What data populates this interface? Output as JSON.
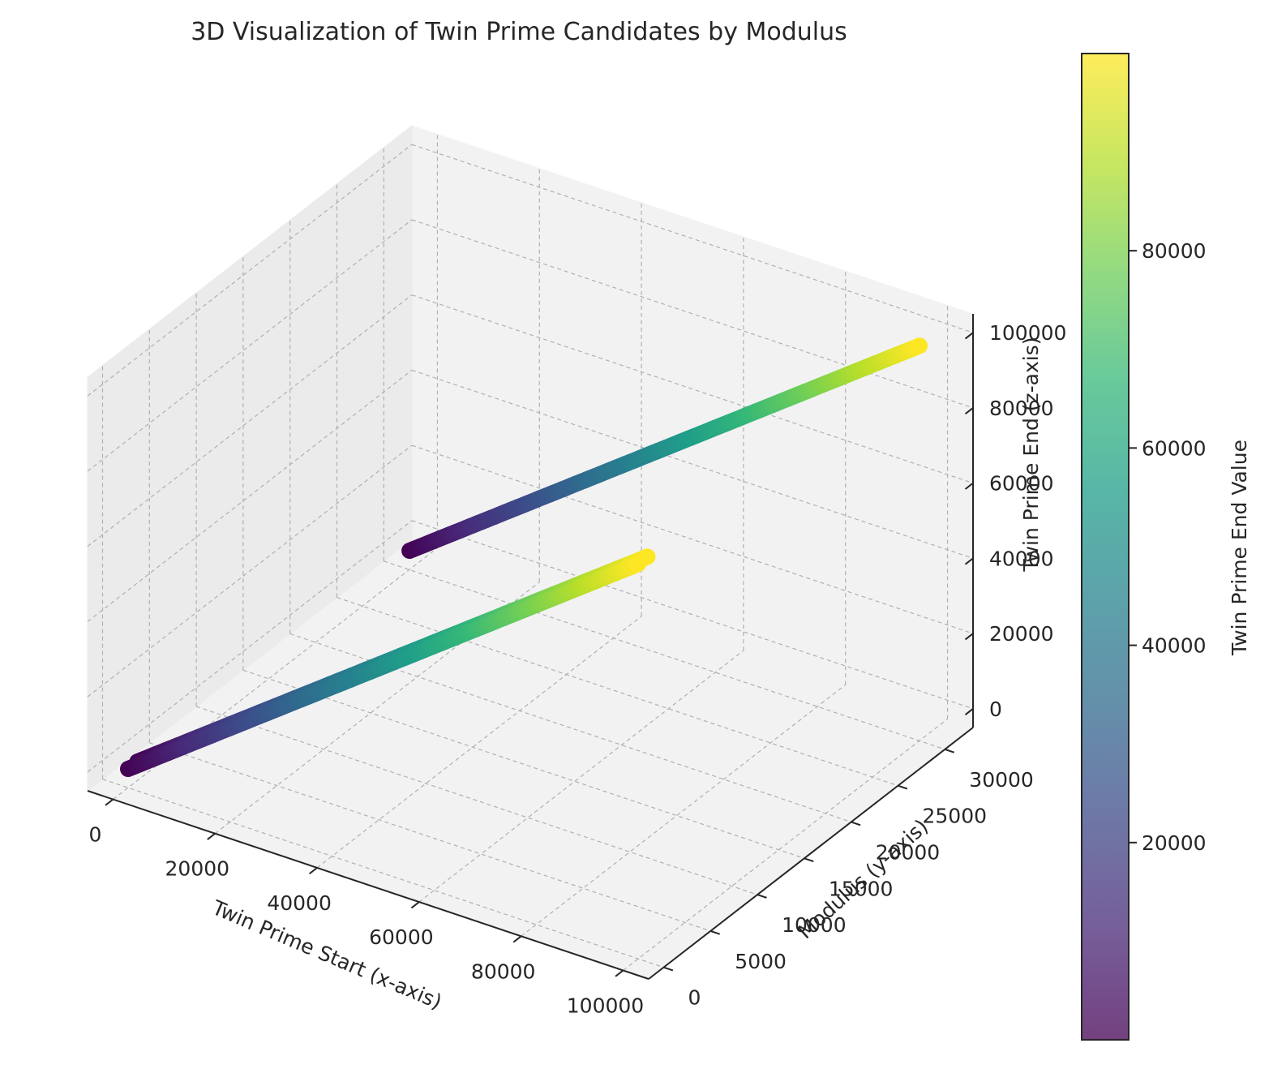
{
  "chart_data": {
    "type": "scatter",
    "projection": "3d",
    "title": "3D Visualization of Twin Prime Candidates by Modulus",
    "xlabel": "Twin Prime Start (x-axis)",
    "ylabel": "Modulus (y-axis)",
    "zlabel": "Twin Prime End (z-axis)",
    "xlim": [
      -5000,
      105000
    ],
    "ylim": [
      -1600,
      33000
    ],
    "zlim": [
      -5000,
      105000
    ],
    "x_ticks": [
      "0",
      "20000",
      "40000",
      "60000",
      "80000",
      "100000"
    ],
    "x_tick_values": [
      0,
      20000,
      40000,
      60000,
      80000,
      100000
    ],
    "y_ticks": [
      "0",
      "5000",
      "10000",
      "15000",
      "20000",
      "25000",
      "30000"
    ],
    "y_tick_values": [
      0,
      5000,
      10000,
      15000,
      20000,
      25000,
      30000
    ],
    "z_ticks": [
      "0",
      "20000",
      "40000",
      "60000",
      "80000",
      "100000"
    ],
    "z_tick_values": [
      0,
      20000,
      40000,
      60000,
      80000,
      100000
    ],
    "grid": true,
    "colormap": "viridis",
    "colorbar": {
      "label": "Twin Prime End Value",
      "ticks": [
        "20000",
        "40000",
        "60000",
        "80000"
      ],
      "tick_values": [
        20000,
        40000,
        60000,
        80000
      ],
      "range": [
        5,
        99991
      ],
      "colors": [
        "#440154",
        "#482878",
        "#3e4989",
        "#31688e",
        "#26828e",
        "#1f9e89",
        "#35b779",
        "#6ece58",
        "#b5de2b",
        "#fde725"
      ]
    },
    "series": [
      {
        "modulus": 2,
        "x_range": [
          3,
          99989
        ],
        "z_range": [
          5,
          99991
        ]
      },
      {
        "modulus": 1000,
        "x_range": [
          3,
          99989
        ],
        "z_range": [
          5,
          99991
        ]
      },
      {
        "modulus": 30030,
        "x_range": [
          3,
          99989
        ],
        "z_range": [
          5,
          99991
        ]
      }
    ],
    "point_alpha": 0.75
  }
}
